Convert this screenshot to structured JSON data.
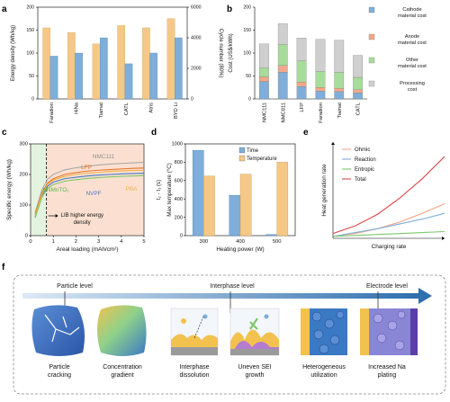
{
  "chart_data": [
    {
      "panel": "a",
      "type": "bar",
      "categories": [
        "Faradion",
        "HiNa",
        "Tiamat",
        "CATL",
        "Atris",
        "BYD Li"
      ],
      "series": [
        {
          "axis": "left",
          "values": [
            155,
            145,
            120,
            160,
            155,
            175
          ],
          "color": "#f5c887"
        },
        {
          "axis": "right",
          "values": [
            2800,
            3000,
            4000,
            2300,
            3000,
            4000
          ],
          "color": "#7eaed9"
        }
      ],
      "ylabel": "Energy density (Wh/kg)",
      "ylim": [
        0,
        200
      ],
      "yticks": [
        0,
        50,
        100,
        150,
        200
      ],
      "y2label": "Cycle number (80%)",
      "y2lim": [
        0,
        6000
      ],
      "y2ticks": [
        0,
        2000,
        4000,
        6000
      ]
    },
    {
      "panel": "b",
      "type": "bar",
      "stacked": true,
      "categories": [
        "NMC111",
        "NMC811",
        "LFP",
        "Faradion",
        "Tiamat",
        "CATL"
      ],
      "series": [
        {
          "name": "Cathode material cost",
          "values": [
            38,
            58,
            27,
            17,
            16,
            13
          ],
          "color": "#7eaed9"
        },
        {
          "name": "Anode material cost",
          "values": [
            10,
            15,
            10,
            8,
            7,
            7
          ],
          "color": "#f2a88a"
        },
        {
          "name": "Other material cost",
          "values": [
            20,
            46,
            46,
            35,
            35,
            27
          ],
          "color": "#a8dc9a"
        },
        {
          "name": "Processing cost",
          "values": [
            52,
            45,
            50,
            70,
            70,
            48
          ],
          "color": "#cfcfcf"
        }
      ],
      "ylabel": "Cost (US$/kWh)",
      "ylim": [
        0,
        200
      ],
      "yticks": [
        0,
        50,
        100,
        150,
        200
      ]
    },
    {
      "panel": "c",
      "type": "line",
      "xlabel": "Areal loading (mAh/cm²)",
      "ylabel": "Specific energy (Wh/kg)",
      "xlim": [
        0,
        5
      ],
      "ylim": [
        0,
        300
      ],
      "xticks": [
        0,
        1,
        2,
        3,
        4,
        5
      ],
      "yticks": [
        0,
        100,
        200,
        300
      ],
      "x": [
        0.2,
        0.5,
        0.75,
        1,
        1.5,
        2,
        2.5,
        3,
        3.5,
        4,
        4.5,
        5
      ],
      "series": [
        {
          "name": "NMC111",
          "color": "#a9a9a9",
          "values": [
            75,
            150,
            185,
            200,
            215,
            222,
            227,
            231,
            234,
            236,
            238,
            240
          ]
        },
        {
          "name": "LFP",
          "color": "#e8732a",
          "values": [
            70,
            140,
            172,
            186,
            200,
            206,
            211,
            214,
            216,
            218,
            220,
            221
          ]
        },
        {
          "name": "NVPF",
          "color": "#4a78c6",
          "values": [
            62,
            130,
            162,
            175,
            186,
            191,
            195,
            198,
            200,
            202,
            203,
            204
          ]
        },
        {
          "name": "PBA",
          "color": "#f0b24a",
          "values": [
            65,
            135,
            168,
            182,
            194,
            200,
            204,
            207,
            210,
            212,
            213,
            214
          ]
        },
        {
          "name": "NNMnTO₂",
          "color": "#7cc86a",
          "values": [
            58,
            125,
            155,
            167,
            178,
            183,
            187,
            190,
            192,
            194,
            195,
            196
          ]
        }
      ],
      "annotation": "LIB higher energy density",
      "threshold_x": 0.7
    },
    {
      "panel": "d",
      "type": "bar",
      "categories": [
        "300",
        "400",
        "500"
      ],
      "series": [
        {
          "name": "Time",
          "axis": "left",
          "values": [
            930,
            440,
            12
          ],
          "color": "#7eaed9"
        },
        {
          "name": "Temperature",
          "axis": "right",
          "values": [
            650,
            670,
            800
          ],
          "color": "#f5c887"
        }
      ],
      "xlabel": "Heating power (W)",
      "ylabel": "t₂ - t₁ (s)",
      "ylim": [
        0,
        1000
      ],
      "yticks": [
        0,
        200,
        400,
        600,
        800,
        1000
      ],
      "y2label": "Max temperature (°C)",
      "y2lim": [
        0,
        1000
      ]
    },
    {
      "panel": "e",
      "type": "line",
      "xlabel": "Charging rate",
      "ylabel": "Heat generation rate",
      "x": [
        0,
        0.2,
        0.4,
        0.6,
        0.8,
        1
      ],
      "series": [
        {
          "name": "Ohmic",
          "color": "#f2a88a",
          "values": [
            0.02,
            0.05,
            0.1,
            0.17,
            0.26,
            0.36
          ]
        },
        {
          "name": "Reaction",
          "color": "#7eaed9",
          "values": [
            0.02,
            0.06,
            0.1,
            0.15,
            0.2,
            0.26
          ]
        },
        {
          "name": "Entropic",
          "color": "#7cc86a",
          "values": [
            0.02,
            0.03,
            0.04,
            0.05,
            0.06,
            0.07
          ]
        },
        {
          "name": "Total",
          "color": "#d94a4a",
          "values": [
            0.05,
            0.13,
            0.25,
            0.42,
            0.62,
            0.85
          ]
        }
      ]
    }
  ],
  "panels": {
    "a": "a",
    "b": "b",
    "c": "c",
    "d": "d",
    "e": "e",
    "f": "f"
  },
  "panel_f": {
    "levels": [
      "Particle level",
      "Interphase level",
      "Electrode level"
    ],
    "items": [
      "Particle\ncracking",
      "Concentration\ngradient",
      "Interphase\ndissolution",
      "Uneven SEI\ngrowth",
      "Heterogeneous\nutilization",
      "Increased Na\nplating"
    ]
  }
}
